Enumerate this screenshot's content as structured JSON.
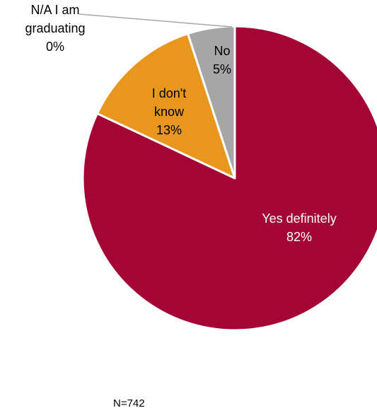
{
  "chart_data": {
    "type": "pie",
    "slices": [
      {
        "label_lines": [
          "Yes definitely",
          "82%"
        ],
        "value": 82,
        "color": "#A50534",
        "text_color": "#FFFFFF"
      },
      {
        "label_lines": [
          "I don't",
          "know",
          "13%"
        ],
        "value": 13,
        "color": "#E8961E",
        "text_color": "#000000"
      },
      {
        "label_lines": [
          "No",
          "5%"
        ],
        "value": 5,
        "color": "#A6A6A6",
        "text_color": "#000000"
      },
      {
        "label_lines": [
          "N/A I am",
          "graduating",
          "0%"
        ],
        "value": 0,
        "color": "#D9D9D9",
        "text_color": "#000000"
      }
    ],
    "note": "N=742"
  }
}
